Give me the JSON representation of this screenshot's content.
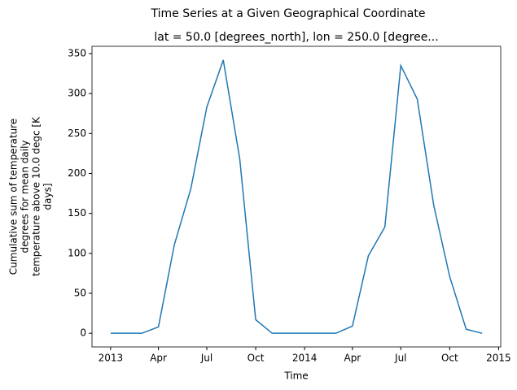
{
  "chart_data": {
    "type": "line",
    "title": "Time Series at a Given Geographical Coordinate",
    "subtitle": "lat = 50.0 [degrees_north], lon = 250.0 [degree...",
    "xlabel": "Time",
    "ylabel": [
      "Cumulative sum of temperature",
      "degrees for mean daily",
      "temperature above 10.0 degc [K",
      "days]"
    ],
    "x": [
      "2013-01",
      "2013-02",
      "2013-03",
      "2013-04",
      "2013-05",
      "2013-06",
      "2013-07",
      "2013-08",
      "2013-09",
      "2013-10",
      "2013-11",
      "2013-12",
      "2014-01",
      "2014-02",
      "2014-03",
      "2014-04",
      "2014-05",
      "2014-06",
      "2014-07",
      "2014-08",
      "2014-09",
      "2014-10",
      "2014-11",
      "2014-12"
    ],
    "series": [
      {
        "color": "#1f77b4",
        "values": [
          0,
          0,
          0,
          8,
          111,
          181,
          283,
          342,
          218,
          17,
          0,
          0,
          0,
          0,
          0,
          9,
          97,
          133,
          335,
          293,
          160,
          71,
          5,
          0
        ]
      }
    ],
    "xlim": [
      "2012-11-27",
      "2015-01-05"
    ],
    "xticks": [
      {
        "value": "2013-01",
        "label": "2013"
      },
      {
        "value": "2013-04",
        "label": "Apr"
      },
      {
        "value": "2013-07",
        "label": "Jul"
      },
      {
        "value": "2013-10",
        "label": "Oct"
      },
      {
        "value": "2014-01",
        "label": "2014"
      },
      {
        "value": "2014-04",
        "label": "Apr"
      },
      {
        "value": "2014-07",
        "label": "Jul"
      },
      {
        "value": "2014-10",
        "label": "Oct"
      },
      {
        "value": "2015-01",
        "label": "2015"
      }
    ],
    "ylim": [
      -17.1,
      359.1
    ],
    "yticks": [
      0,
      50,
      100,
      150,
      200,
      250,
      300,
      350
    ],
    "grid": false
  }
}
